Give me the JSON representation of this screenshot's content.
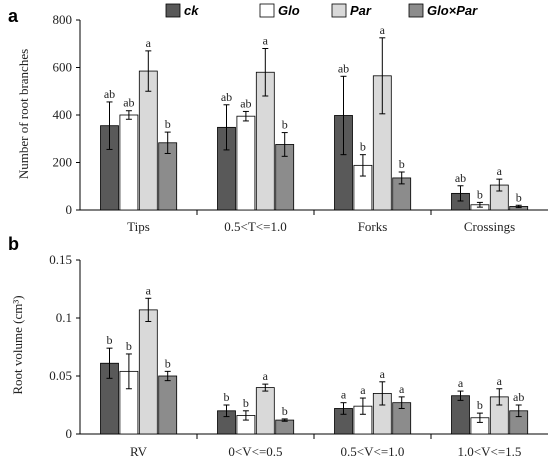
{
  "chart_data": [
    {
      "type": "bar",
      "panel_label": "a",
      "ylabel": "Number of root branches",
      "ylim": [
        0,
        800
      ],
      "yticks": [
        0,
        200,
        400,
        600,
        800
      ],
      "categories": [
        "Tips",
        "0.5<T<=1.0",
        "Forks",
        "Crossings"
      ],
      "series": [
        {
          "name": "ck",
          "color": "#595959",
          "values": [
            355,
            348,
            398,
            70
          ],
          "errors": [
            100,
            95,
            165,
            32
          ],
          "letters": [
            "ab",
            "ab",
            "ab",
            "ab"
          ]
        },
        {
          "name": "Glo",
          "color": "#ffffff",
          "values": [
            400,
            395,
            188,
            22
          ],
          "errors": [
            18,
            20,
            45,
            10
          ],
          "letters": [
            "ab",
            "ab",
            "b",
            "b"
          ]
        },
        {
          "name": "Par",
          "color": "#d9d9d9",
          "values": [
            585,
            580,
            565,
            105
          ],
          "errors": [
            85,
            100,
            160,
            25
          ],
          "letters": [
            "a",
            "a",
            "a",
            "a"
          ]
        },
        {
          "name": "Glo×Par",
          "color": "#8c8c8c",
          "values": [
            283,
            276,
            135,
            15
          ],
          "errors": [
            45,
            50,
            25,
            5
          ],
          "letters": [
            "b",
            "b",
            "b",
            "b"
          ]
        }
      ]
    },
    {
      "type": "bar",
      "panel_label": "b",
      "ylabel": "Root volume (cm³)",
      "ylim": [
        0,
        0.15
      ],
      "yticks": [
        "0",
        "0.05",
        "0.1",
        "0.15"
      ],
      "ytick_values": [
        0,
        0.05,
        0.1,
        0.15
      ],
      "categories": [
        "RV",
        "0<V<=0.5",
        "0.5<V<=1.0",
        "1.0<V<=1.5"
      ],
      "series": [
        {
          "name": "ck",
          "color": "#595959",
          "values": [
            0.061,
            0.02,
            0.022,
            0.033
          ],
          "errors": [
            0.013,
            0.005,
            0.005,
            0.004
          ],
          "letters": [
            "b",
            "b",
            "a",
            "a"
          ]
        },
        {
          "name": "Glo",
          "color": "#ffffff",
          "values": [
            0.054,
            0.016,
            0.024,
            0.014
          ],
          "errors": [
            0.015,
            0.004,
            0.007,
            0.004
          ],
          "letters": [
            "b",
            "b",
            "a",
            "b"
          ]
        },
        {
          "name": "Par",
          "color": "#d9d9d9",
          "values": [
            0.107,
            0.04,
            0.035,
            0.032
          ],
          "errors": [
            0.01,
            0.003,
            0.01,
            0.007
          ],
          "letters": [
            "a",
            "a",
            "a",
            "a"
          ]
        },
        {
          "name": "Glo×Par",
          "color": "#8c8c8c",
          "values": [
            0.05,
            0.012,
            0.027,
            0.02
          ],
          "errors": [
            0.004,
            0.001,
            0.005,
            0.005
          ],
          "letters": [
            "b",
            "b",
            "a",
            "ab"
          ]
        }
      ]
    }
  ]
}
